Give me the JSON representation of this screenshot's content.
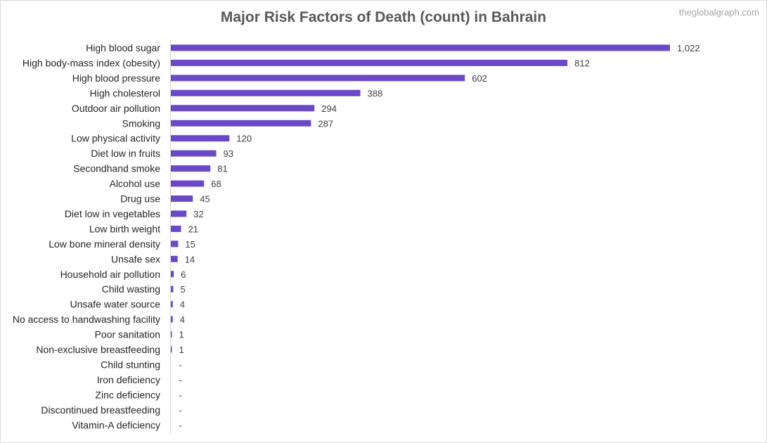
{
  "watermark": "theglobalgraph.com",
  "chart_data": {
    "type": "bar",
    "orientation": "horizontal",
    "title": "Major Risk Factors of Death (count) in Bahrain",
    "xlabel": "",
    "ylabel": "",
    "grid": false,
    "legend": "none",
    "bar_color": "#6a48c8",
    "xlim": [
      0,
      1100
    ],
    "categories": [
      "High blood sugar",
      "High body-mass index (obesity)",
      "High blood pressure",
      "High cholesterol",
      "Outdoor air pollution",
      "Smoking",
      "Low physical activity",
      "Diet low in fruits",
      "Secondhand smoke",
      "Alcohol use",
      "Drug use",
      "Diet low in vegetables",
      "Low birth weight",
      "Low bone mineral density",
      "Unsafe sex",
      "Household air pollution",
      "Child wasting",
      "Unsafe water source",
      "No access to handwashing facility",
      "Poor sanitation",
      "Non-exclusive breastfeeding",
      "Child stunting",
      "Iron deficiency",
      "Zinc deficiency",
      "Discontinued breastfeeding",
      "Vitamin-A deficiency"
    ],
    "values": [
      1022,
      812,
      602,
      388,
      294,
      287,
      120,
      93,
      81,
      68,
      45,
      32,
      21,
      15,
      14,
      6,
      5,
      4,
      4,
      1,
      1,
      0,
      0,
      0,
      0,
      0
    ],
    "data_labels": [
      "1,022",
      "812",
      "602",
      "388",
      "294",
      "287",
      "120",
      "93",
      "81",
      "68",
      "45",
      "32",
      "21",
      "15",
      "14",
      "6",
      "5",
      "4",
      "4",
      "1",
      "1",
      "-",
      "-",
      "-",
      "-",
      "-"
    ]
  }
}
